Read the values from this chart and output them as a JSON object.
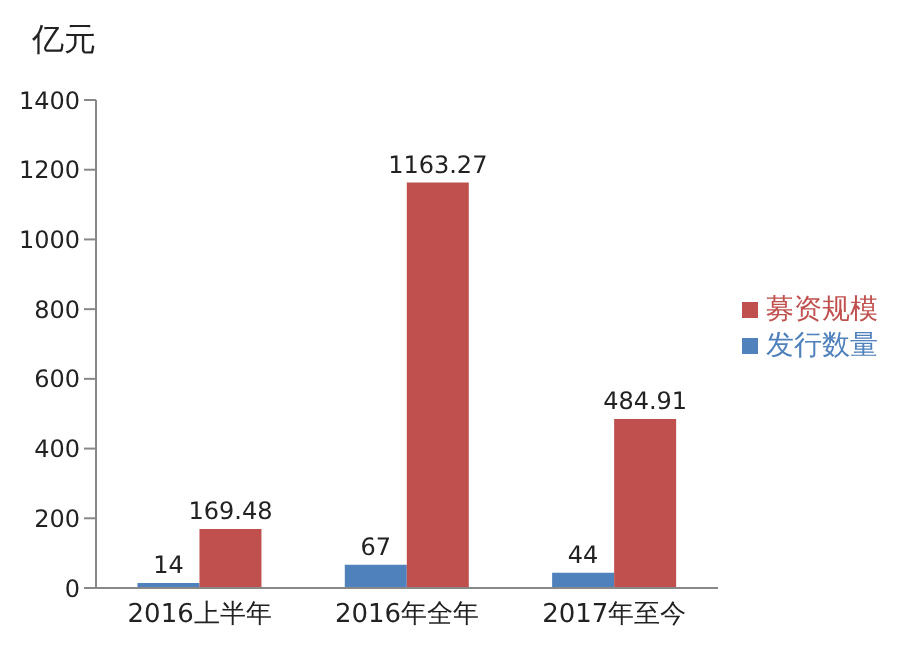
{
  "chart_data": {
    "type": "bar",
    "ylabel": "亿元",
    "categories": [
      "2016上半年",
      "2016年全年",
      "2017年至今"
    ],
    "series": [
      {
        "name": "发行数量",
        "color": "#4f81bd",
        "values": [
          14,
          67,
          44
        ]
      },
      {
        "name": "募资规模",
        "color": "#c0504d",
        "values": [
          169.48,
          1163.27,
          484.91
        ]
      }
    ],
    "ylim": [
      0,
      1400
    ],
    "yticks": [
      0,
      200,
      400,
      600,
      800,
      1000,
      1200,
      1400
    ],
    "grid": false,
    "legend": "right",
    "data_labels": true
  }
}
